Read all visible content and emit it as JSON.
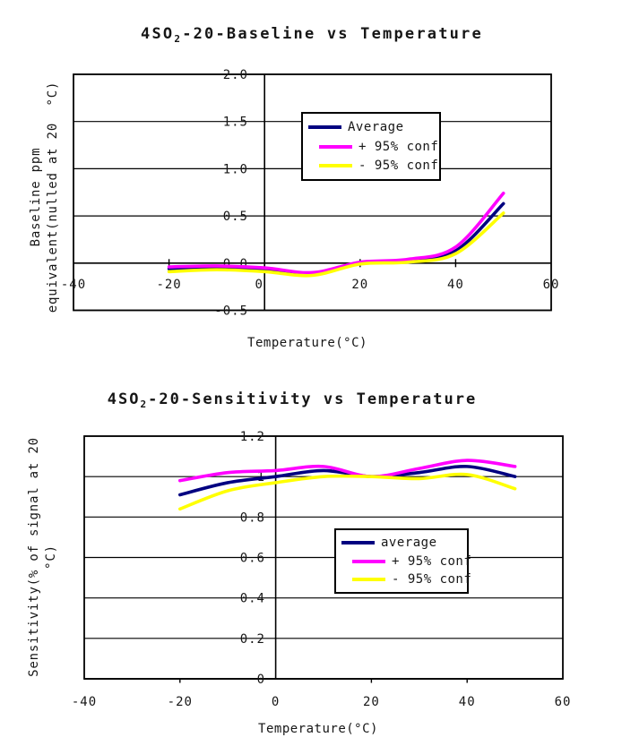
{
  "page": {
    "background": "#ffffff",
    "axis_color": "#000000"
  },
  "chart_data": [
    {
      "type": "line",
      "title": "4SO2-20-Baseline vs Temperature",
      "title_parts": {
        "prefix": "4SO",
        "sub": "2",
        "suffix": "-20-Baseline vs Temperature"
      },
      "xlabel": "Temperature(°C)",
      "ylabel_lines": [
        "Baseline ppm",
        "equivalent(nulled at 20  °C)"
      ],
      "xlim": [
        -40,
        60
      ],
      "ylim": [
        -0.5,
        2.0
      ],
      "grid": "horizontal-only",
      "legend_position": "upper center",
      "x_ticks": {
        "values": [
          -40,
          -20,
          0,
          20,
          40,
          60
        ],
        "labels": [
          "-40",
          "-20",
          "0",
          "20",
          "40",
          "60"
        ]
      },
      "y_ticks": {
        "values": [
          2.0,
          1.5,
          1.0,
          0.5,
          0.0,
          -0.5
        ],
        "labels": [
          "2.0",
          "1.5",
          "1.0",
          "0.5",
          "0.0",
          "-0.5"
        ]
      },
      "x": [
        -20,
        -10,
        0,
        10,
        20,
        30,
        40,
        50
      ],
      "series": [
        {
          "name": "Average",
          "color": "#000080",
          "values": [
            -0.06,
            -0.05,
            -0.07,
            -0.11,
            0.0,
            0.02,
            0.13,
            0.63
          ]
        },
        {
          "name": "+ 95% conf",
          "color": "#FF00FF",
          "values": [
            -0.04,
            -0.03,
            -0.05,
            -0.1,
            0.01,
            0.04,
            0.17,
            0.74
          ]
        },
        {
          "name": "- 95% conf",
          "color": "#FFFF00",
          "values": [
            -0.09,
            -0.07,
            -0.09,
            -0.13,
            -0.01,
            0.01,
            0.1,
            0.53
          ]
        }
      ]
    },
    {
      "type": "line",
      "title": "4SO2-20-Sensitivity vs Temperature",
      "title_parts": {
        "prefix": "4SO",
        "sub": "2",
        "suffix": "-20-Sensitivity vs Temperature"
      },
      "xlabel": "Temperature(°C)",
      "ylabel_lines": [
        "Sensitivity(% of signal at 20",
        "°C)"
      ],
      "xlim": [
        -40,
        60
      ],
      "ylim": [
        0,
        1.2
      ],
      "grid": "horizontal-only",
      "legend_position": "lower center",
      "x_ticks": {
        "values": [
          -40,
          -20,
          0,
          20,
          40,
          60
        ],
        "labels": [
          "-40",
          "-20",
          "0",
          "20",
          "40",
          "60"
        ]
      },
      "y_ticks": {
        "values": [
          1.2,
          1.0,
          0.8,
          0.6,
          0.4,
          0.2,
          0
        ],
        "labels": [
          "1.2",
          "1",
          "0.8",
          "0.6",
          "0.4",
          "0.2",
          "0"
        ]
      },
      "x": [
        -20,
        -10,
        0,
        10,
        20,
        30,
        40,
        50
      ],
      "series": [
        {
          "name": "average",
          "color": "#000080",
          "values": [
            0.91,
            0.97,
            1.0,
            1.03,
            1.0,
            1.02,
            1.05,
            1.0
          ]
        },
        {
          "name": "+ 95% conf",
          "color": "#FF00FF",
          "values": [
            0.98,
            1.02,
            1.03,
            1.05,
            1.0,
            1.04,
            1.08,
            1.05
          ]
        },
        {
          "name": "- 95% conf",
          "color": "#FFFF00",
          "values": [
            0.84,
            0.93,
            0.97,
            1.0,
            1.0,
            0.99,
            1.01,
            0.94
          ]
        }
      ]
    }
  ]
}
